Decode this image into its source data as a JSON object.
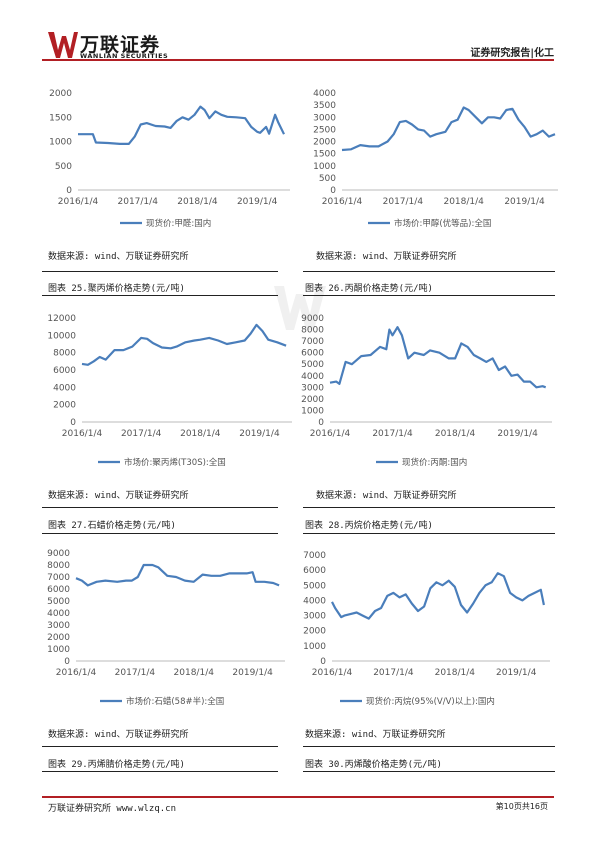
{
  "header": {
    "logo_cn": "万联证券",
    "logo_en": "WANLIAN SECURITIES",
    "right": "证券研究报告|化工",
    "accent_color": "#b21f24"
  },
  "footer": {
    "left": "万联证券研究所 www.wlzq.cn",
    "right": "第10页共16页"
  },
  "top_sources": [
    "数据来源: wind、万联证券研究所",
    "数据来源: wind、万联证券研究所"
  ],
  "panels": [
    {
      "caption": "图表 25.聚丙烯价格走势(元/吨)",
      "source": "数据来源: wind、万联证券研究所"
    },
    {
      "caption": "图表 26.丙酮价格走势(元/吨)",
      "source": "数据来源: wind、万联证券研究所"
    },
    {
      "caption": "图表 27.石蜡价格走势(元/吨)",
      "source": "数据来源: wind、万联证券研究所"
    },
    {
      "caption": "图表 28.丙烷价格走势(元/吨)",
      "source": "数据来源: wind、万联证券研究所"
    },
    {
      "caption": "图表 29.丙烯腈价格走势(元/吨)",
      "source": "数据来源: wind、万联证券研究所"
    },
    {
      "caption": "图表 30.丙烯酸价格走势(元/吨)",
      "source": "数据来源: wind、万联证券研究所"
    }
  ],
  "chart_data": [
    {
      "type": "line",
      "title": "",
      "x_tick_labels": [
        "2016/1/4",
        "2017/1/4",
        "2018/1/4",
        "2019/1/4"
      ],
      "ylim": [
        0,
        2000
      ],
      "yticks": [
        0,
        500,
        1000,
        1500,
        2000
      ],
      "color": "#4a7ebb",
      "series": [
        {
          "name": "现货价:甲醛:国内",
          "x": [
            2016.0,
            2016.1,
            2016.25,
            2016.3,
            2016.5,
            2016.7,
            2016.85,
            2016.95,
            2017.05,
            2017.15,
            2017.3,
            2017.45,
            2017.55,
            2017.65,
            2017.75,
            2017.85,
            2017.95,
            2018.05,
            2018.12,
            2018.2,
            2018.3,
            2018.4,
            2018.5,
            2018.65,
            2018.8,
            2018.9,
            2019.0,
            2019.05,
            2019.15,
            2019.2,
            2019.3,
            2019.35,
            2019.45
          ],
          "values": [
            1150,
            1150,
            1150,
            980,
            970,
            950,
            950,
            1100,
            1350,
            1380,
            1320,
            1310,
            1280,
            1420,
            1500,
            1450,
            1550,
            1720,
            1650,
            1480,
            1620,
            1550,
            1510,
            1500,
            1480,
            1300,
            1200,
            1180,
            1300,
            1160,
            1550,
            1400,
            1150
          ]
        }
      ]
    },
    {
      "type": "line",
      "title": "",
      "x_tick_labels": [
        "2016/1/4",
        "2017/1/4",
        "2018/1/4",
        "2019/1/4"
      ],
      "ylim": [
        0,
        4000
      ],
      "yticks": [
        0,
        500,
        1000,
        1500,
        2000,
        2500,
        3000,
        3500,
        4000
      ],
      "color": "#4a7ebb",
      "series": [
        {
          "name": "市场价:甲醇(优等品):全国",
          "x": [
            2016.0,
            2016.15,
            2016.3,
            2016.45,
            2016.6,
            2016.75,
            2016.85,
            2016.95,
            2017.05,
            2017.15,
            2017.25,
            2017.35,
            2017.45,
            2017.55,
            2017.7,
            2017.8,
            2017.9,
            2018.0,
            2018.08,
            2018.2,
            2018.3,
            2018.4,
            2018.5,
            2018.6,
            2018.7,
            2018.8,
            2018.9,
            2019.0,
            2019.1,
            2019.2,
            2019.3,
            2019.4,
            2019.5
          ],
          "values": [
            1650,
            1680,
            1850,
            1800,
            1800,
            2000,
            2300,
            2800,
            2850,
            2700,
            2500,
            2450,
            2200,
            2300,
            2400,
            2800,
            2900,
            3400,
            3300,
            3000,
            2750,
            3000,
            3000,
            2950,
            3300,
            3350,
            2900,
            2600,
            2200,
            2300,
            2450,
            2200,
            2300
          ]
        }
      ]
    },
    {
      "type": "line",
      "title": "",
      "x_tick_labels": [
        "2016/1/4",
        "2017/1/4",
        "2018/1/4",
        "2019/1/4"
      ],
      "ylim": [
        0,
        12000
      ],
      "yticks": [
        0,
        2000,
        4000,
        6000,
        8000,
        10000,
        12000
      ],
      "color": "#4a7ebb",
      "series": [
        {
          "name": "市场价:聚丙烯(T30S):全国",
          "x": [
            2016.0,
            2016.1,
            2016.2,
            2016.3,
            2016.4,
            2016.55,
            2016.7,
            2016.85,
            2017.0,
            2017.1,
            2017.2,
            2017.35,
            2017.5,
            2017.6,
            2017.75,
            2017.9,
            2018.0,
            2018.15,
            2018.3,
            2018.45,
            2018.6,
            2018.75,
            2018.85,
            2018.95,
            2019.05,
            2019.15,
            2019.3,
            2019.45
          ],
          "values": [
            6700,
            6600,
            7000,
            7500,
            7200,
            8300,
            8300,
            8700,
            9700,
            9600,
            9100,
            8600,
            8500,
            8700,
            9200,
            9400,
            9500,
            9700,
            9400,
            9000,
            9200,
            9400,
            10200,
            11200,
            10500,
            9500,
            9200,
            8800
          ]
        }
      ]
    },
    {
      "type": "line",
      "title": "",
      "x_tick_labels": [
        "2016/1/4",
        "2017/1/4",
        "2018/1/4",
        "2019/1/4"
      ],
      "ylim": [
        0,
        9000
      ],
      "yticks": [
        0,
        1000,
        2000,
        3000,
        4000,
        5000,
        6000,
        7000,
        8000,
        9000
      ],
      "color": "#4a7ebb",
      "series": [
        {
          "name": "现货价:丙酮:国内",
          "x": [
            2016.0,
            2016.1,
            2016.15,
            2016.25,
            2016.35,
            2016.5,
            2016.65,
            2016.8,
            2016.9,
            2016.95,
            2017.0,
            2017.08,
            2017.15,
            2017.25,
            2017.35,
            2017.5,
            2017.6,
            2017.75,
            2017.9,
            2018.0,
            2018.1,
            2018.2,
            2018.3,
            2018.4,
            2018.5,
            2018.6,
            2018.7,
            2018.8,
            2018.9,
            2019.0,
            2019.1,
            2019.2,
            2019.3,
            2019.4,
            2019.45
          ],
          "values": [
            3400,
            3500,
            3300,
            5200,
            5000,
            5700,
            5800,
            6500,
            6300,
            8000,
            7500,
            8200,
            7500,
            5500,
            6000,
            5800,
            6200,
            6000,
            5500,
            5500,
            6800,
            6500,
            5800,
            5500,
            5200,
            5500,
            4500,
            4800,
            4000,
            4100,
            3500,
            3500,
            3000,
            3100,
            3000
          ]
        }
      ]
    },
    {
      "type": "line",
      "title": "",
      "x_tick_labels": [
        "2016/1/4",
        "2017/1/4",
        "2018/1/4",
        "2019/1/4"
      ],
      "ylim": [
        0,
        9000
      ],
      "yticks": [
        0,
        1000,
        2000,
        3000,
        4000,
        5000,
        6000,
        7000,
        8000,
        9000
      ],
      "color": "#4a7ebb",
      "series": [
        {
          "name": "市场价:石蜡(58#半):全国",
          "x": [
            2016.0,
            2016.1,
            2016.2,
            2016.35,
            2016.5,
            2016.7,
            2016.85,
            2016.95,
            2017.05,
            2017.15,
            2017.3,
            2017.4,
            2017.55,
            2017.7,
            2017.85,
            2018.0,
            2018.15,
            2018.3,
            2018.45,
            2018.6,
            2018.75,
            2018.9,
            2019.0,
            2019.05,
            2019.2,
            2019.35,
            2019.45
          ],
          "values": [
            6900,
            6700,
            6300,
            6600,
            6700,
            6600,
            6700,
            6700,
            7000,
            8000,
            8000,
            7800,
            7100,
            7000,
            6700,
            6600,
            7200,
            7100,
            7100,
            7300,
            7300,
            7300,
            7400,
            6600,
            6600,
            6500,
            6300
          ]
        }
      ]
    },
    {
      "type": "line",
      "title": "",
      "x_tick_labels": [
        "2016/1/4",
        "2017/1/4",
        "2018/1/4",
        "2019/1/4"
      ],
      "ylim": [
        0,
        7000
      ],
      "yticks": [
        0,
        1000,
        2000,
        3000,
        4000,
        5000,
        6000,
        7000
      ],
      "color": "#4a7ebb",
      "series": [
        {
          "name": "现货价:丙烷(95%(V/V)以上):国内",
          "x": [
            2016.0,
            2016.05,
            2016.1,
            2016.15,
            2016.2,
            2016.3,
            2016.4,
            2016.5,
            2016.6,
            2016.7,
            2016.8,
            2016.9,
            2017.0,
            2017.1,
            2017.2,
            2017.3,
            2017.4,
            2017.5,
            2017.6,
            2017.7,
            2017.8,
            2017.9,
            2018.0,
            2018.1,
            2018.2,
            2018.3,
            2018.4,
            2018.5,
            2018.6,
            2018.7,
            2018.8,
            2018.9,
            2019.0,
            2019.1,
            2019.2,
            2019.3,
            2019.4,
            2019.45
          ],
          "values": [
            3900,
            3500,
            3200,
            2900,
            3000,
            3100,
            3200,
            3000,
            2800,
            3300,
            3500,
            4300,
            4500,
            4200,
            4400,
            3800,
            3300,
            3600,
            4800,
            5200,
            5000,
            5300,
            4900,
            3700,
            3200,
            3800,
            4500,
            5000,
            5200,
            5800,
            5600,
            4500,
            4200,
            4000,
            4300,
            4500,
            4700,
            3700
          ]
        }
      ]
    }
  ]
}
